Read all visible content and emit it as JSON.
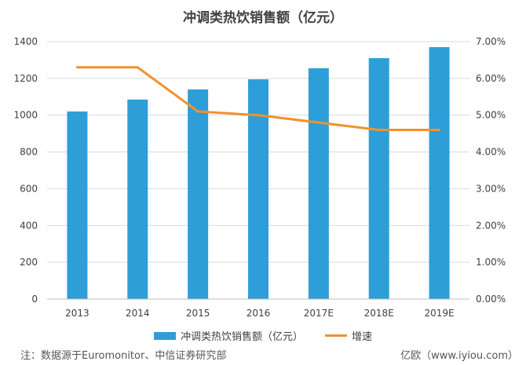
{
  "colors": {
    "bar": "#2E9ED8",
    "line": "#F0922E",
    "grid": "#D9D9D9",
    "axis": "#BFBFBF"
  },
  "footer": {
    "note": "注：数据源于Euromonitor、中信证券研究部",
    "source": "亿欧（www.iyiou.com）"
  },
  "chart_data": {
    "type": "bar",
    "title": "冲调类热饮销售额（亿元）",
    "categories": [
      "2013",
      "2014",
      "2015",
      "2016",
      "2017E",
      "2018E",
      "2019E"
    ],
    "series": [
      {
        "name": "冲调类热饮销售额（亿元）",
        "type": "bar",
        "axis": "left",
        "values": [
          1020,
          1085,
          1140,
          1195,
          1255,
          1310,
          1370
        ]
      },
      {
        "name": "增速",
        "type": "line",
        "axis": "right",
        "values": [
          6.3,
          6.3,
          5.1,
          5.0,
          4.8,
          4.6,
          4.6
        ]
      }
    ],
    "y_left": {
      "min": 0,
      "max": 1400,
      "ticks": [
        "0",
        "200",
        "400",
        "600",
        "800",
        "1000",
        "1200",
        "1400"
      ]
    },
    "y_right": {
      "min": 0,
      "max": 7,
      "ticks": [
        "0.00%",
        "1.00%",
        "2.00%",
        "3.00%",
        "4.00%",
        "5.00%",
        "6.00%",
        "7.00%"
      ]
    },
    "grid": true,
    "legend_position": "bottom"
  }
}
